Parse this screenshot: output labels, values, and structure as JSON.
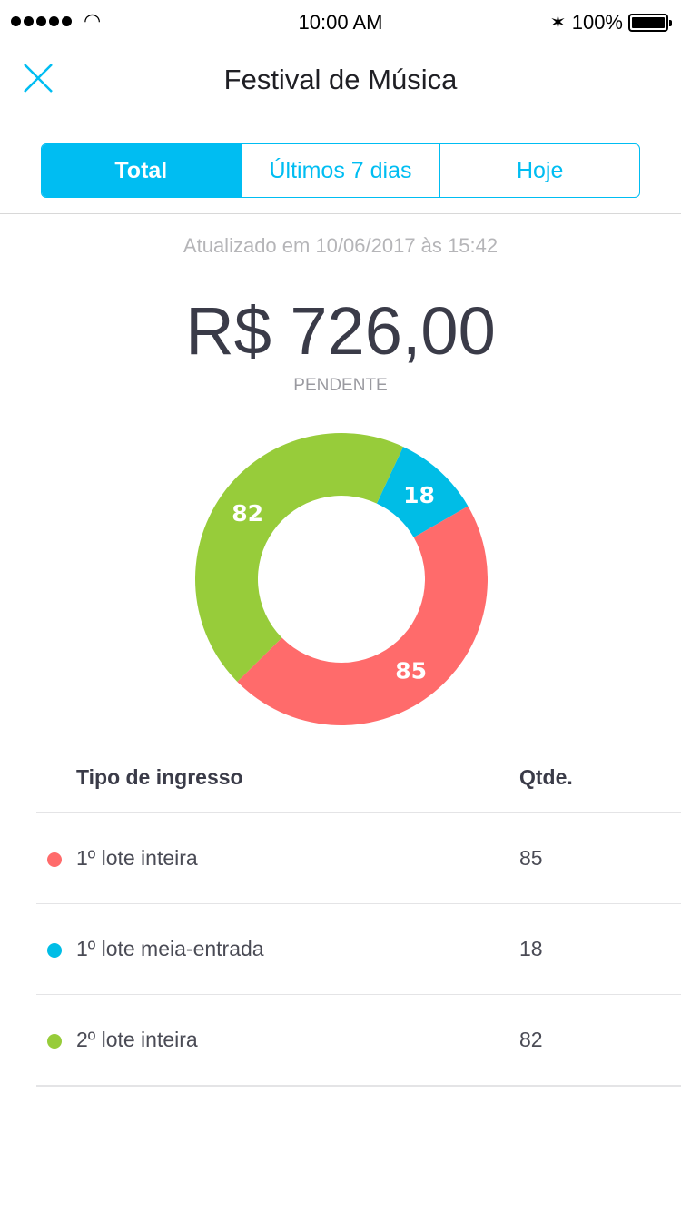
{
  "status_bar": {
    "time": "10:00 AM",
    "battery": "100%"
  },
  "nav": {
    "title": "Festival de Música"
  },
  "tabs": [
    {
      "label": "Total",
      "selected": true
    },
    {
      "label": "Últimos 7 dias",
      "selected": false
    },
    {
      "label": "Hoje",
      "selected": false
    }
  ],
  "updated": "Atualizado em 10/06/2017 às 15:42",
  "amount": "R$ 726,00",
  "amount_status": "PENDENTE",
  "table": {
    "headers": [
      "Tipo de ingresso",
      "Qtde."
    ],
    "rows": [
      {
        "name": "1º lote inteira",
        "qty": "85",
        "color": "#ff6b6b"
      },
      {
        "name": "1º lote meia-entrada",
        "qty": "18",
        "color": "#00bde6"
      },
      {
        "name": "2º lote inteira",
        "qty": "82",
        "color": "#97cc3a"
      }
    ]
  },
  "chart_data": {
    "type": "pie",
    "donut": true,
    "categories": [
      "1º lote meia-entrada",
      "1º lote inteira",
      "2º lote inteira"
    ],
    "values": [
      18,
      85,
      82
    ],
    "colors": [
      "#00bde6",
      "#ff6b6b",
      "#97cc3a"
    ],
    "data_labels": [
      "18",
      "85",
      "82"
    ]
  }
}
